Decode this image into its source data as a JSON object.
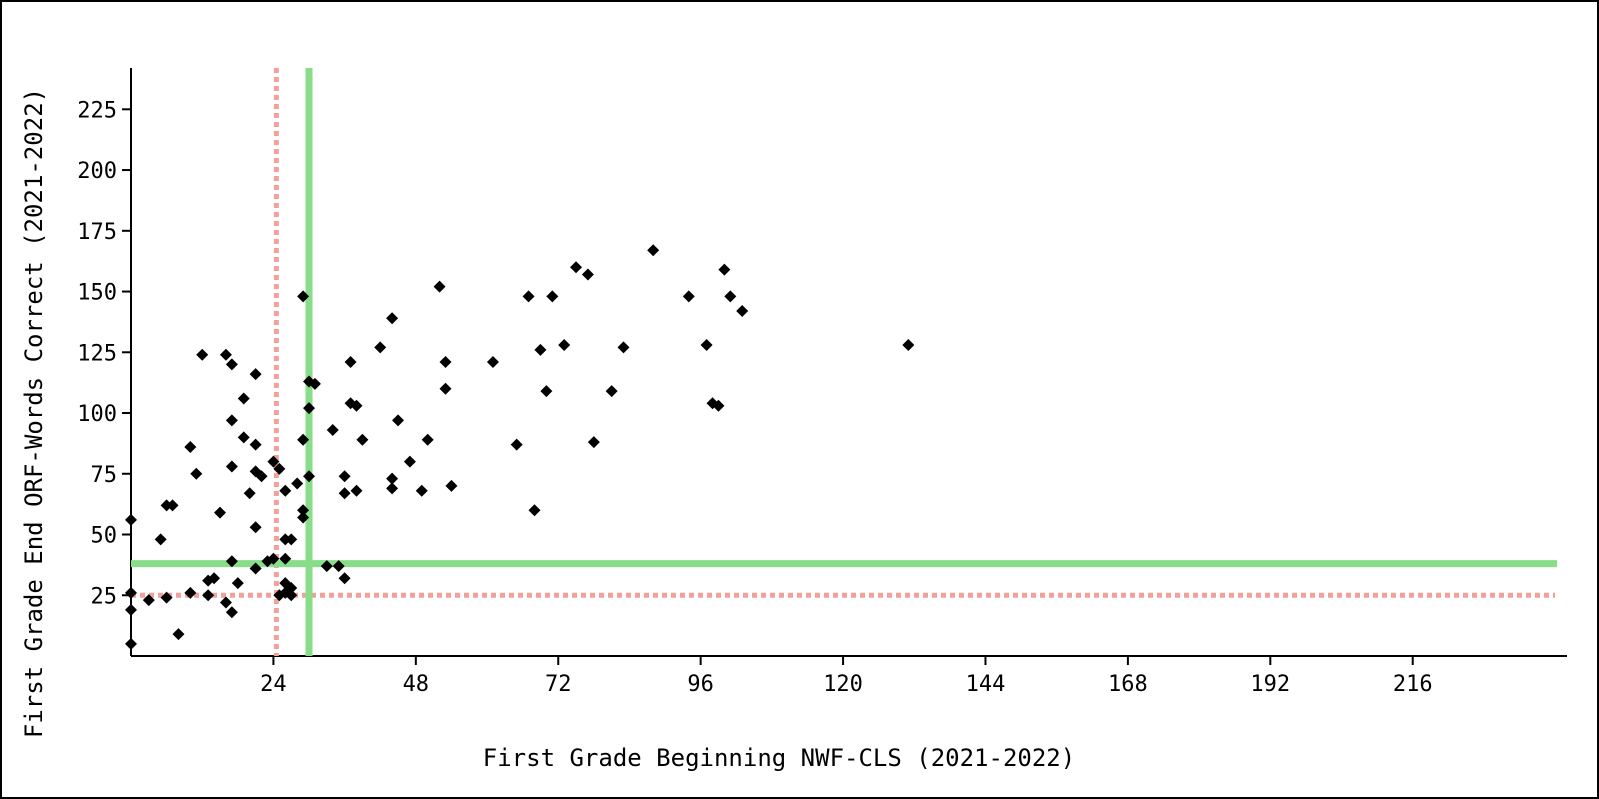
{
  "chart_data": {
    "type": "scatter",
    "xlabel": "First Grade Beginning NWF-CLS (2021-2022)",
    "ylabel": "First Grade End ORF-Words Correct (2021-2022)",
    "xlim": [
      0,
      242
    ],
    "ylim": [
      0,
      242
    ],
    "x_ticks": [
      24,
      48,
      72,
      96,
      120,
      144,
      168,
      192,
      216
    ],
    "y_ticks": [
      25,
      50,
      75,
      100,
      125,
      150,
      175,
      200,
      225
    ],
    "grid": false,
    "legend": "none",
    "marker": "diamond",
    "colors": {
      "points": "#000000",
      "benchmark": "#88dd88",
      "cut_point": "#f4a09a"
    },
    "reference_lines": {
      "benchmark_x": 30,
      "benchmark_y": 38,
      "cut_x": 24.5,
      "cut_y": 25
    },
    "points": [
      [
        0,
        56
      ],
      [
        0,
        26
      ],
      [
        0,
        19
      ],
      [
        0,
        5
      ],
      [
        3,
        23
      ],
      [
        5,
        48
      ],
      [
        6,
        24
      ],
      [
        6,
        62
      ],
      [
        7,
        62
      ],
      [
        8,
        9
      ],
      [
        10,
        86
      ],
      [
        10,
        26
      ],
      [
        11,
        75
      ],
      [
        12,
        124
      ],
      [
        13,
        25
      ],
      [
        13,
        31
      ],
      [
        14,
        32
      ],
      [
        15,
        59
      ],
      [
        16,
        124
      ],
      [
        16,
        22
      ],
      [
        17,
        120
      ],
      [
        17,
        97
      ],
      [
        17,
        78
      ],
      [
        17,
        39
      ],
      [
        17,
        18
      ],
      [
        18,
        30
      ],
      [
        19,
        106
      ],
      [
        19,
        90
      ],
      [
        20,
        67
      ],
      [
        21,
        116
      ],
      [
        21,
        87
      ],
      [
        21,
        76
      ],
      [
        21,
        53
      ],
      [
        21,
        36
      ],
      [
        22,
        74
      ],
      [
        23,
        39
      ],
      [
        24,
        80
      ],
      [
        24,
        40
      ],
      [
        25,
        77
      ],
      [
        25,
        25
      ],
      [
        26,
        68
      ],
      [
        26,
        48
      ],
      [
        26,
        40
      ],
      [
        26,
        30
      ],
      [
        26,
        26
      ],
      [
        27,
        48
      ],
      [
        27,
        28
      ],
      [
        27,
        25
      ],
      [
        28,
        71
      ],
      [
        29,
        148
      ],
      [
        29,
        89
      ],
      [
        29,
        60
      ],
      [
        29,
        57
      ],
      [
        30,
        113
      ],
      [
        30,
        102
      ],
      [
        30,
        74
      ],
      [
        31,
        112
      ],
      [
        33,
        37
      ],
      [
        34,
        93
      ],
      [
        35,
        37
      ],
      [
        36,
        74
      ],
      [
        36,
        67
      ],
      [
        36,
        32
      ],
      [
        37,
        121
      ],
      [
        37,
        104
      ],
      [
        38,
        103
      ],
      [
        38,
        68
      ],
      [
        39,
        89
      ],
      [
        42,
        127
      ],
      [
        44,
        139
      ],
      [
        44,
        73
      ],
      [
        44,
        69
      ],
      [
        45,
        97
      ],
      [
        47,
        80
      ],
      [
        49,
        68
      ],
      [
        50,
        89
      ],
      [
        52,
        152
      ],
      [
        53,
        121
      ],
      [
        53,
        110
      ],
      [
        54,
        70
      ],
      [
        61,
        121
      ],
      [
        65,
        87
      ],
      [
        67,
        148
      ],
      [
        68,
        60
      ],
      [
        69,
        126
      ],
      [
        70,
        109
      ],
      [
        71,
        148
      ],
      [
        73,
        128
      ],
      [
        75,
        160
      ],
      [
        77,
        157
      ],
      [
        78,
        88
      ],
      [
        81,
        109
      ],
      [
        83,
        127
      ],
      [
        88,
        167
      ],
      [
        94,
        148
      ],
      [
        97,
        128
      ],
      [
        98,
        104
      ],
      [
        99,
        103
      ],
      [
        100,
        159
      ],
      [
        101,
        148
      ],
      [
        103,
        142
      ],
      [
        131,
        128
      ]
    ]
  }
}
